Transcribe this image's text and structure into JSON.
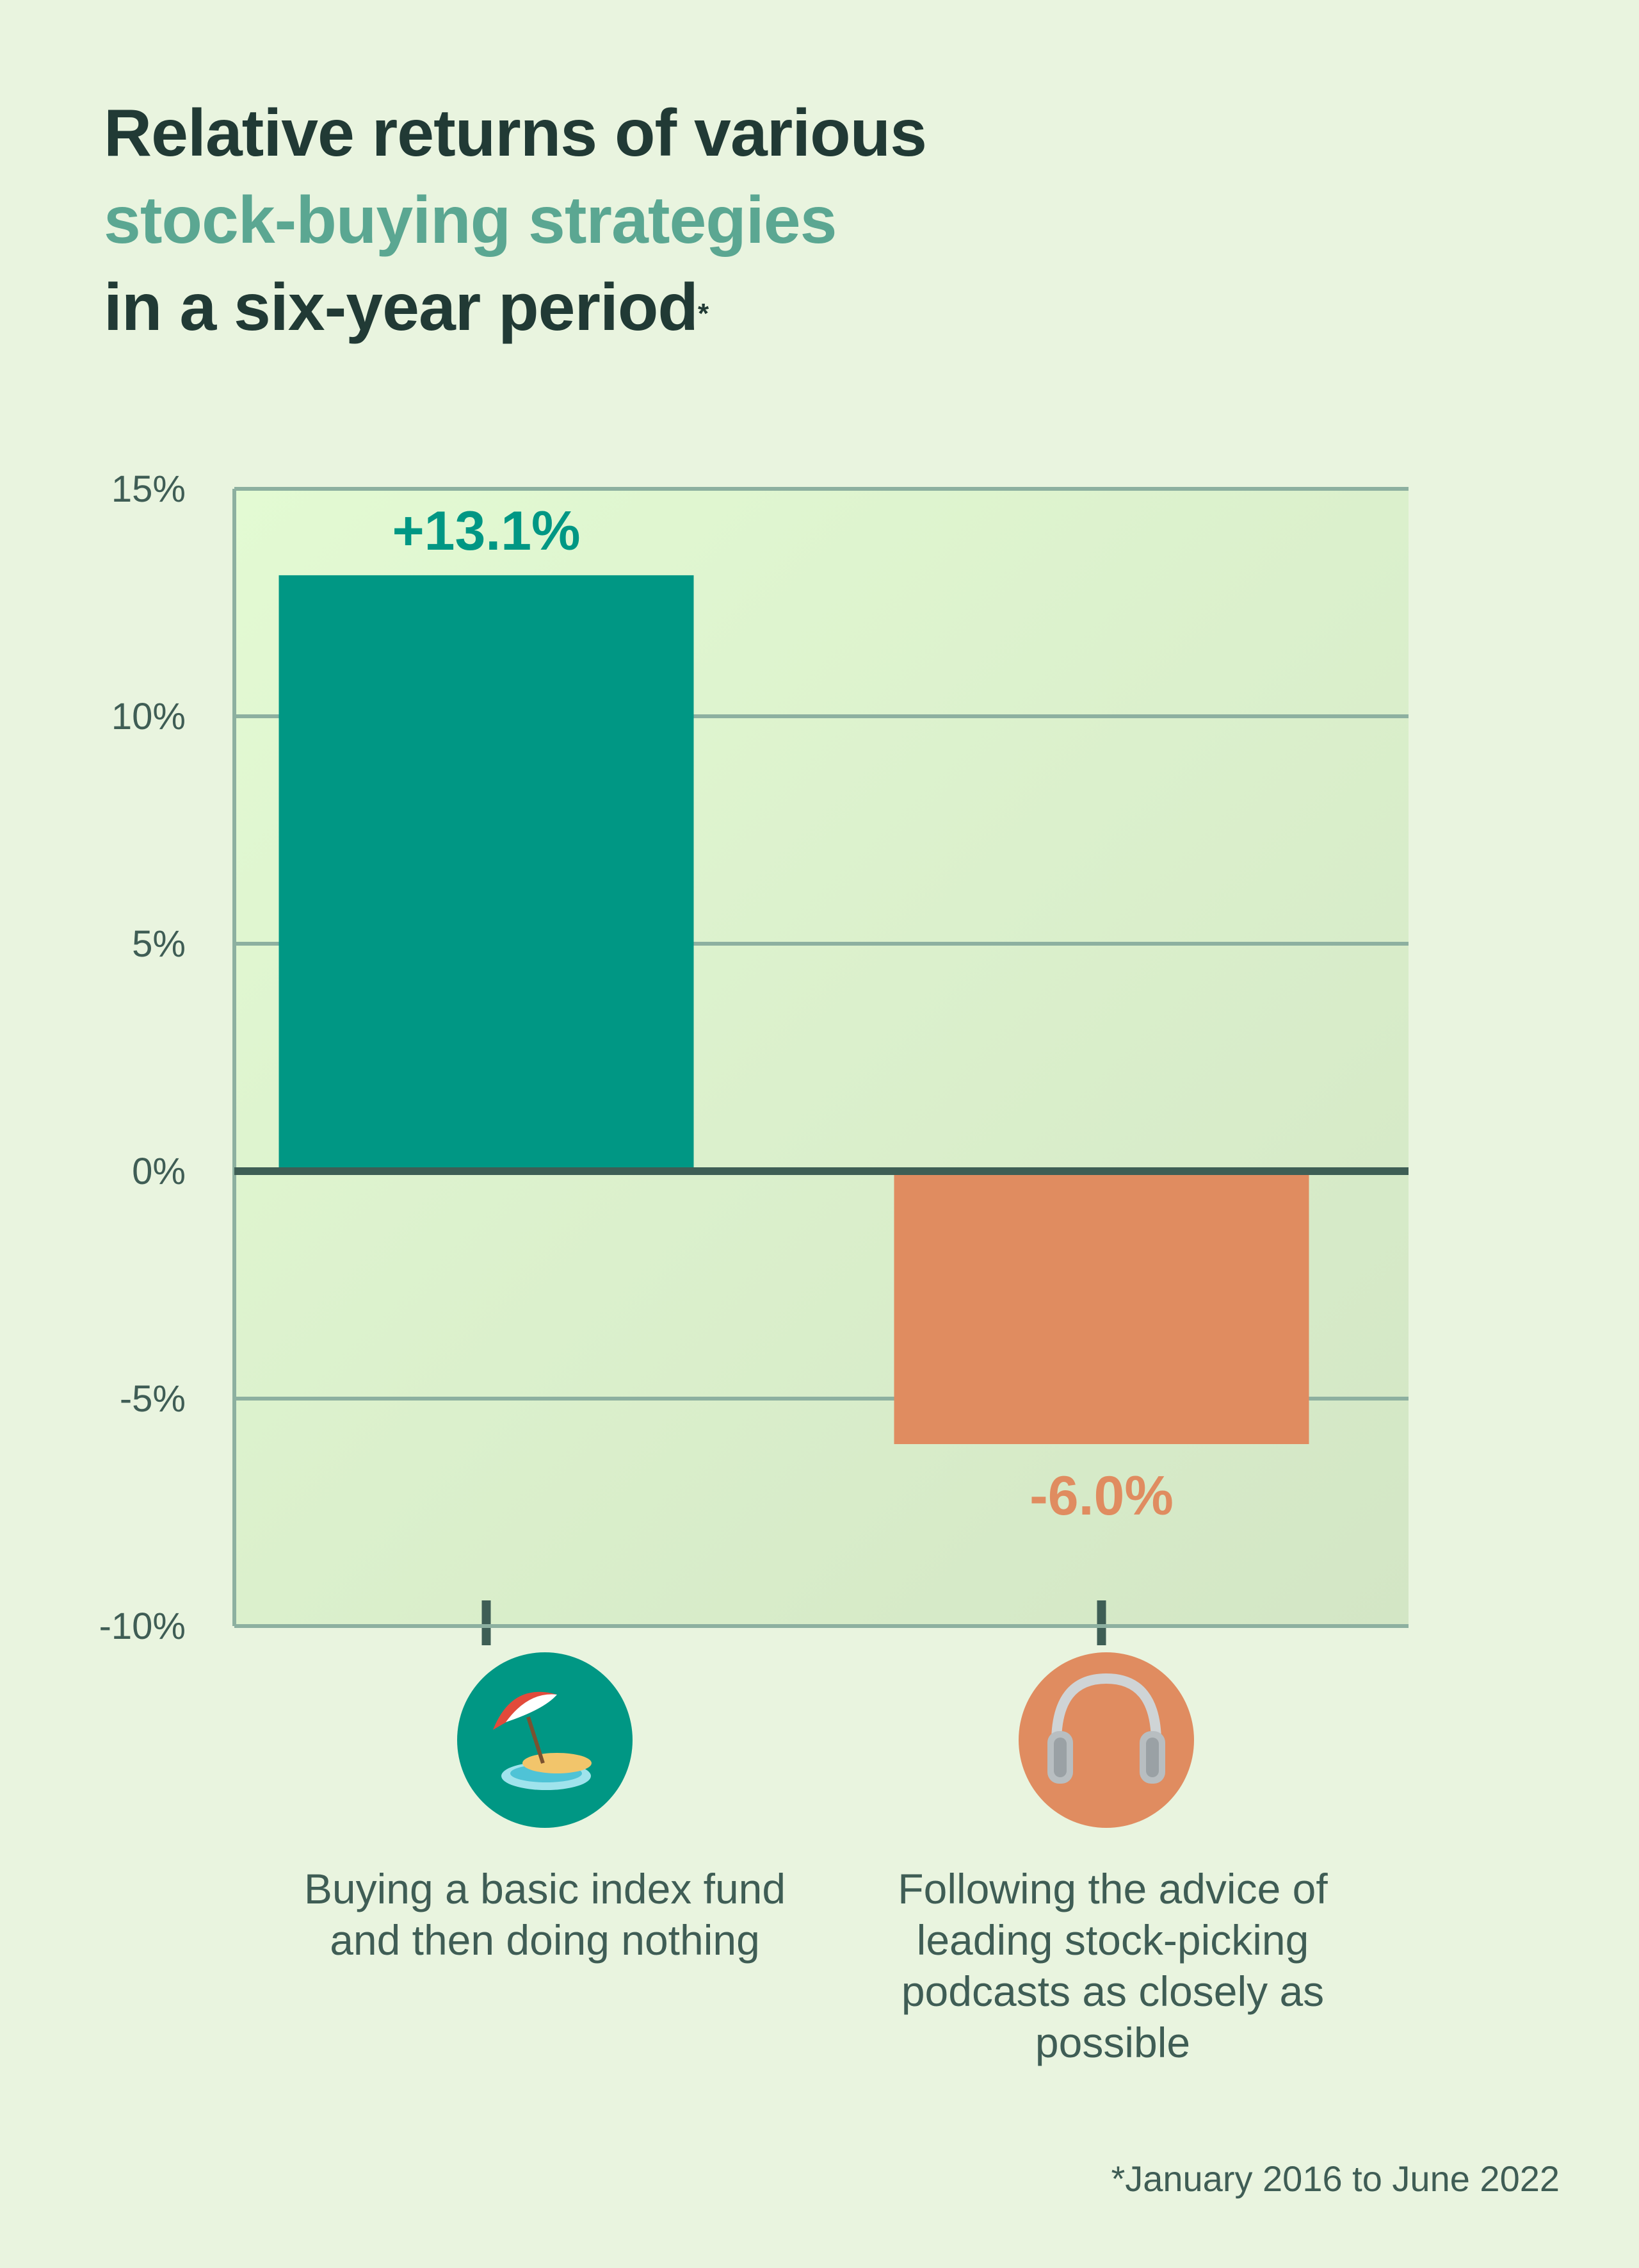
{
  "title": {
    "line1": "Relative returns of various",
    "line2": "stock-buying strategies",
    "line3": "in a six-year period",
    "marker": "*"
  },
  "chart_data": {
    "type": "bar",
    "categories": [
      "Buying a basic index fund and then doing nothing",
      "Following the advice of leading stock-picking podcasts as closely as possible"
    ],
    "values": [
      13.1,
      -6.0
    ],
    "data_labels": [
      "+13.1%",
      "-6.0%"
    ],
    "category_icons": [
      "beach-umbrella-island-icon",
      "headphones-icon"
    ],
    "ylim": [
      -10,
      15
    ],
    "yticks": [
      15,
      10,
      5,
      0,
      -5,
      -10
    ],
    "ytick_labels": [
      "15%",
      "10%",
      "5%",
      "0%",
      "-5%",
      "-10%"
    ],
    "grid": true,
    "colors": [
      "#009784",
      "#e08c60"
    ],
    "label_colors": [
      "#009784",
      "#e08c60"
    ]
  },
  "footnote": "*January 2016 to June 2022"
}
